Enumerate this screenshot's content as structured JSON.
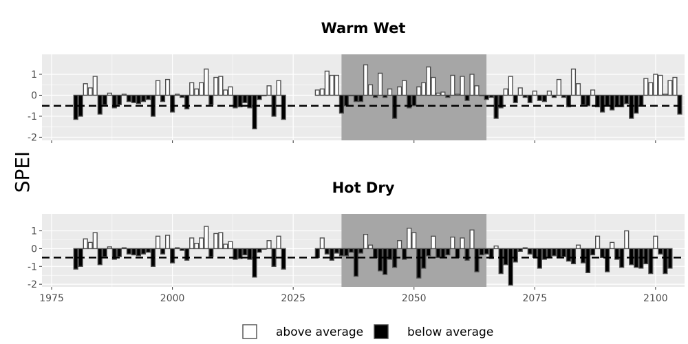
{
  "chart_data": {
    "type": "bar",
    "ylabel": "SPEI",
    "legend": {
      "position": "bottom",
      "entries": [
        {
          "label": "above average",
          "fill": "#ffffff"
        },
        {
          "label": "below average",
          "fill": "#000000"
        }
      ]
    },
    "threshold_line": -0.5,
    "shaded_period": [
      2035,
      2065
    ],
    "xlim": [
      1973,
      2106
    ],
    "xticks": [
      1975,
      2000,
      2025,
      2050,
      2075,
      2100
    ],
    "ylim": [
      -2.15,
      1.95
    ],
    "yticks": [
      -2,
      -1,
      0,
      1
    ],
    "grid": true,
    "colors": {
      "panel": "#ebebeb",
      "grid": "#ffffff",
      "shade": "#a6a6a6",
      "bar_outline": "#4d4d4d"
    },
    "panels": [
      {
        "title": "Warm Wet",
        "show_x_labels": false,
        "years_start": 1980,
        "values": [
          -1.15,
          -1.0,
          0.55,
          0.35,
          0.9,
          -0.9,
          -0.45,
          0.1,
          -0.6,
          -0.45,
          0.05,
          -0.3,
          -0.35,
          -0.4,
          -0.3,
          -0.2,
          -1.0,
          0.7,
          -0.3,
          0.75,
          -0.8,
          0.05,
          -0.1,
          -0.65,
          0.6,
          0.3,
          0.6,
          1.25,
          -0.45,
          0.85,
          0.9,
          0.25,
          0.4,
          -0.6,
          -0.55,
          -0.35,
          -0.6,
          -1.6,
          -0.2,
          0.0,
          0.45,
          -1.0,
          0.7,
          -1.15,
          null,
          null,
          null,
          null,
          null,
          null,
          0.25,
          0.3,
          1.15,
          0.95,
          0.95,
          -0.85,
          -0.5,
          0.0,
          -0.3,
          -0.3,
          1.45,
          0.5,
          -0.1,
          1.05,
          -0.1,
          0.3,
          -1.1,
          0.4,
          0.7,
          -0.6,
          -0.5,
          0.4,
          0.6,
          1.35,
          0.85,
          0.1,
          0.15,
          -0.1,
          0.95,
          0.05,
          0.9,
          -0.25,
          1.0,
          0.45,
          0.0,
          -0.2,
          -0.1,
          -1.1,
          -0.6,
          0.3,
          0.9,
          -0.35,
          0.35,
          -0.1,
          -0.35,
          0.2,
          -0.25,
          -0.3,
          0.2,
          -0.1,
          0.75,
          -0.1,
          -0.55,
          1.25,
          0.55,
          -0.45,
          -0.5,
          0.25,
          -0.55,
          -0.8,
          -0.5,
          -0.7,
          -0.55,
          -0.55,
          -0.4,
          -1.1,
          -0.85,
          -0.5,
          0.8,
          0.6,
          1.0,
          0.95,
          0.05,
          0.7,
          0.85,
          -0.9
        ]
      },
      {
        "title": "Hot Dry",
        "show_x_labels": true,
        "years_start": 1980,
        "values": [
          -1.15,
          -1.0,
          0.55,
          0.35,
          0.9,
          -0.9,
          -0.45,
          0.1,
          -0.6,
          -0.45,
          0.05,
          -0.3,
          -0.35,
          -0.4,
          -0.3,
          -0.2,
          -1.0,
          0.7,
          -0.3,
          0.75,
          -0.8,
          0.05,
          -0.1,
          -0.65,
          0.6,
          0.3,
          0.6,
          1.25,
          -0.45,
          0.85,
          0.9,
          0.25,
          0.4,
          -0.6,
          -0.55,
          -0.35,
          -0.6,
          -1.6,
          -0.2,
          0.0,
          0.45,
          -1.0,
          0.7,
          -1.15,
          null,
          null,
          null,
          null,
          null,
          null,
          -0.5,
          0.6,
          -0.3,
          -0.65,
          -0.25,
          -0.4,
          -0.4,
          -0.2,
          -1.55,
          -0.25,
          0.8,
          0.2,
          -0.5,
          -1.25,
          -1.45,
          -0.6,
          -1.05,
          0.45,
          -0.6,
          1.15,
          0.9,
          -1.65,
          -1.1,
          -0.4,
          0.7,
          -0.5,
          -0.5,
          -0.35,
          0.65,
          -0.5,
          0.6,
          -0.65,
          1.05,
          -1.3,
          -0.35,
          -0.3,
          -0.55,
          0.15,
          -1.4,
          -0.9,
          -2.05,
          -0.75,
          -0.15,
          0.05,
          -0.3,
          -0.5,
          -1.1,
          -0.6,
          -0.5,
          -0.4,
          -0.5,
          -0.45,
          -0.7,
          -0.85,
          0.2,
          -0.8,
          -1.35,
          -0.35,
          0.7,
          -0.5,
          -1.3,
          0.35,
          -0.6,
          -1.05,
          1.0,
          -0.9,
          -1.05,
          -1.1,
          -0.85,
          -1.4,
          0.7,
          -0.3,
          -1.4,
          -1.1
        ]
      }
    ]
  }
}
